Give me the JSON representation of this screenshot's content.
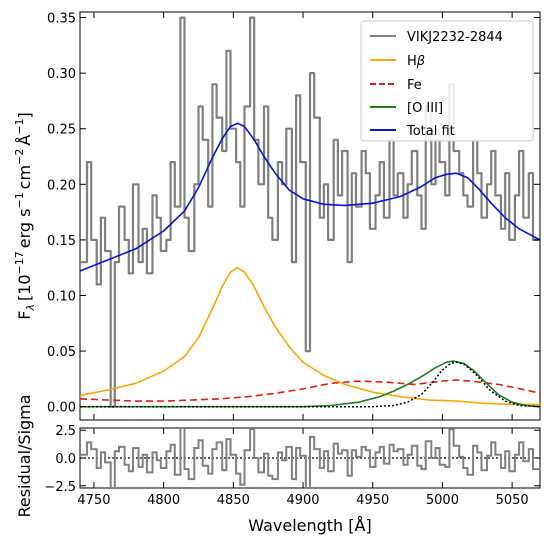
{
  "chart_data": [
    {
      "type": "line",
      "panel": "main",
      "xlim": [
        4740,
        5070
      ],
      "ylim": [
        -0.012,
        0.355
      ],
      "ylabel": "F_λ [10^-17 erg s^-1 cm^-2 Å^-1]",
      "ylabel_parts": {
        "f": "F",
        "lambda": "λ",
        "bracket_open": "[10",
        "e1": "−17",
        "erg": "erg s",
        "e2": "−1",
        "cm": "cm",
        "e3": "−2",
        "ang": "Å",
        "e4": "−1",
        "bracket_close": "]"
      },
      "yticks": [
        0.0,
        0.05,
        0.1,
        0.15,
        0.2,
        0.25,
        0.3,
        0.35
      ],
      "ytick_labels": [
        "0.00",
        "0.05",
        "0.10",
        "0.15",
        "0.20",
        "0.25",
        "0.30",
        "0.35"
      ],
      "legend_position": "top-right",
      "series": [
        {
          "name": "VIKJ2232-2844",
          "style": "steps",
          "color": "#808080",
          "x": [
            4740,
            4745,
            4748,
            4752,
            4755,
            4758,
            4762,
            4765,
            4768,
            4772,
            4775,
            4778,
            4782,
            4785,
            4788,
            4792,
            4795,
            4798,
            4802,
            4805,
            4808,
            4812,
            4815,
            4818,
            4822,
            4825,
            4828,
            4832,
            4835,
            4838,
            4842,
            4845,
            4848,
            4852,
            4855,
            4858,
            4862,
            4865,
            4868,
            4872,
            4875,
            4878,
            4882,
            4885,
            4888,
            4892,
            4895,
            4898,
            4902,
            4905,
            4908,
            4912,
            4915,
            4918,
            4922,
            4925,
            4928,
            4932,
            4935,
            4938,
            4942,
            4945,
            4948,
            4952,
            4955,
            4958,
            4962,
            4965,
            4968,
            4972,
            4975,
            4978,
            4982,
            4985,
            4988,
            4992,
            4995,
            4998,
            5002,
            5005,
            5008,
            5012,
            5015,
            5018,
            5022,
            5025,
            5028,
            5032,
            5035,
            5038,
            5042,
            5045,
            5048,
            5052,
            5055,
            5058,
            5062,
            5065,
            5070
          ],
          "y": [
            0.13,
            0.22,
            0.15,
            0.11,
            0.17,
            0.14,
            0.0,
            0.13,
            0.18,
            0.15,
            0.12,
            0.2,
            0.13,
            0.16,
            0.12,
            0.19,
            0.17,
            0.14,
            0.15,
            0.22,
            0.18,
            0.35,
            0.17,
            0.14,
            0.2,
            0.27,
            0.24,
            0.18,
            0.29,
            0.26,
            0.23,
            0.32,
            0.25,
            0.22,
            0.18,
            0.27,
            0.35,
            0.24,
            0.2,
            0.27,
            0.17,
            0.15,
            0.22,
            0.2,
            0.25,
            0.13,
            0.28,
            0.22,
            0.05,
            0.3,
            0.26,
            0.17,
            0.2,
            0.15,
            0.24,
            0.19,
            0.23,
            0.13,
            0.21,
            0.18,
            0.23,
            0.21,
            0.16,
            0.19,
            0.22,
            0.17,
            0.24,
            0.19,
            0.21,
            0.17,
            0.2,
            0.23,
            0.19,
            0.16,
            0.27,
            0.2,
            0.24,
            0.22,
            0.19,
            0.29,
            0.23,
            0.21,
            0.19,
            0.18,
            0.24,
            0.21,
            0.17,
            0.2,
            0.23,
            0.19,
            0.16,
            0.21,
            0.15,
            0.19,
            0.23,
            0.17,
            0.21,
            0.15,
            0.18
          ]
        },
        {
          "name": "Hβ",
          "legend_parts": {
            "main": "H",
            "sym": "β"
          },
          "style": "line",
          "color": "#ffa500",
          "x": [
            4740,
            4760,
            4780,
            4800,
            4815,
            4825,
            4835,
            4842,
            4848,
            4853,
            4858,
            4865,
            4872,
            4880,
            4890,
            4900,
            4915,
            4930,
            4950,
            4970,
            4990,
            5010,
            5030,
            5050,
            5070
          ],
          "y": [
            0.01,
            0.015,
            0.021,
            0.032,
            0.045,
            0.062,
            0.088,
            0.108,
            0.121,
            0.125,
            0.121,
            0.108,
            0.09,
            0.072,
            0.054,
            0.04,
            0.028,
            0.02,
            0.013,
            0.009,
            0.006,
            0.005,
            0.003,
            0.002,
            0.002
          ]
        },
        {
          "name": "Fe",
          "style": "dashed",
          "color": "#e41a1c",
          "x": [
            4740,
            4760,
            4780,
            4800,
            4820,
            4840,
            4860,
            4880,
            4900,
            4920,
            4940,
            4960,
            4980,
            5000,
            5010,
            5020,
            5040,
            5060,
            5070
          ],
          "y": [
            0.007,
            0.006,
            0.005,
            0.005,
            0.006,
            0.007,
            0.009,
            0.012,
            0.016,
            0.021,
            0.023,
            0.022,
            0.02,
            0.023,
            0.024,
            0.023,
            0.02,
            0.015,
            0.012
          ]
        },
        {
          "name": "[O III]",
          "style": "line",
          "color": "#1f7f1f",
          "x": [
            4740,
            4900,
            4920,
            4940,
            4955,
            4965,
            4975,
            4985,
            4995,
            5003,
            5008,
            5015,
            5022,
            5030,
            5040,
            5050,
            5060,
            5070
          ],
          "y": [
            0.0,
            0.0,
            0.001,
            0.004,
            0.009,
            0.014,
            0.02,
            0.027,
            0.035,
            0.04,
            0.041,
            0.039,
            0.033,
            0.023,
            0.011,
            0.004,
            0.001,
            0.0
          ],
          "components": [
            {
              "style": "dotted",
              "color": "#000000",
              "x": [
                4740,
                4950,
                4965,
                4975,
                4985,
                4993,
                5000,
                5006,
                5010,
                5016,
                5024,
                5034,
                5045,
                5055,
                5070
              ],
              "y": [
                0.0,
                0.0,
                0.001,
                0.004,
                0.011,
                0.022,
                0.033,
                0.039,
                0.04,
                0.038,
                0.029,
                0.015,
                0.005,
                0.001,
                0.0
              ]
            }
          ]
        },
        {
          "name": "Total fit",
          "style": "line",
          "color": "#0a14d2",
          "x": [
            4740,
            4760,
            4780,
            4800,
            4815,
            4825,
            4835,
            4842,
            4848,
            4853,
            4858,
            4865,
            4872,
            4880,
            4890,
            4900,
            4915,
            4930,
            4950,
            4970,
            4985,
            4995,
            5003,
            5010,
            5018,
            5026,
            5035,
            5045,
            5055,
            5070
          ],
          "y": [
            0.122,
            0.132,
            0.142,
            0.158,
            0.176,
            0.197,
            0.224,
            0.241,
            0.252,
            0.255,
            0.252,
            0.24,
            0.225,
            0.21,
            0.195,
            0.187,
            0.182,
            0.181,
            0.183,
            0.189,
            0.198,
            0.206,
            0.209,
            0.21,
            0.206,
            0.196,
            0.183,
            0.17,
            0.16,
            0.15
          ]
        }
      ]
    },
    {
      "type": "line",
      "panel": "residual",
      "xlim": [
        4740,
        5070
      ],
      "ylim": [
        -2.7,
        2.7
      ],
      "xlabel": "Wavelength [Å]",
      "ylabel": "Residual/Sigma",
      "xticks": [
        4750,
        4800,
        4850,
        4900,
        4950,
        5000,
        5050
      ],
      "xtick_labels": [
        "4750",
        "4800",
        "4850",
        "4900",
        "4950",
        "5000",
        "5050"
      ],
      "yticks": [
        2.5,
        0.0,
        -2.5
      ],
      "ytick_labels": [
        "2.5",
        "0.0",
        "−2.5"
      ],
      "zero_line": {
        "style": "dotted",
        "color": "#000000"
      },
      "series": [
        {
          "style": "steps",
          "color": "#808080",
          "x": [
            4740,
            4745,
            4748,
            4752,
            4755,
            4758,
            4762,
            4765,
            4768,
            4772,
            4775,
            4778,
            4782,
            4785,
            4788,
            4792,
            4795,
            4798,
            4802,
            4805,
            4808,
            4812,
            4815,
            4818,
            4822,
            4825,
            4828,
            4832,
            4835,
            4838,
            4842,
            4845,
            4848,
            4852,
            4855,
            4858,
            4862,
            4865,
            4868,
            4872,
            4875,
            4878,
            4882,
            4885,
            4888,
            4892,
            4895,
            4898,
            4902,
            4905,
            4908,
            4912,
            4915,
            4918,
            4922,
            4925,
            4928,
            4932,
            4935,
            4938,
            4942,
            4945,
            4948,
            4952,
            4955,
            4958,
            4962,
            4965,
            4968,
            4972,
            4975,
            4978,
            4982,
            4985,
            4988,
            4992,
            4995,
            4998,
            5002,
            5005,
            5008,
            5012,
            5015,
            5018,
            5022,
            5025,
            5028,
            5032,
            5035,
            5038,
            5042,
            5045,
            5048,
            5052,
            5055,
            5058,
            5062,
            5065,
            5070
          ],
          "y": [
            0.3,
            1.4,
            0.8,
            -0.9,
            0.5,
            -0.4,
            -2.7,
            0.6,
            1.0,
            -0.6,
            -1.2,
            0.9,
            -0.8,
            0.3,
            -1.3,
            0.5,
            -0.2,
            -0.9,
            0.6,
            1.2,
            -1.5,
            2.7,
            -1.0,
            -1.9,
            0.9,
            1.6,
            -0.7,
            -1.4,
            0.8,
            1.4,
            -1.1,
            1.7,
            0.3,
            -1.4,
            -2.4,
            0.7,
            2.6,
            0.0,
            -1.3,
            0.4,
            -1.6,
            -1.9,
            0.5,
            -0.2,
            1.0,
            -1.9,
            0.9,
            0.2,
            -2.7,
            1.9,
            0.8,
            -0.9,
            0.6,
            -1.2,
            1.3,
            0.4,
            0.7,
            -1.6,
            0.7,
            0.1,
            1.0,
            0.7,
            -0.8,
            0.5,
            1.0,
            -0.5,
            1.2,
            0.6,
            0.8,
            -0.6,
            0.3,
            1.1,
            -0.7,
            -1.0,
            1.5,
            0.0,
            0.9,
            -0.6,
            -0.8,
            2.6,
            1.1,
            0.1,
            -0.9,
            -1.5,
            1.1,
            0.5,
            -1.1,
            0.2,
            1.4,
            0.3,
            -0.9,
            0.6,
            -1.2,
            0.3,
            1.4,
            -0.3,
            0.8,
            -1.0,
            0.2
          ]
        }
      ]
    }
  ]
}
